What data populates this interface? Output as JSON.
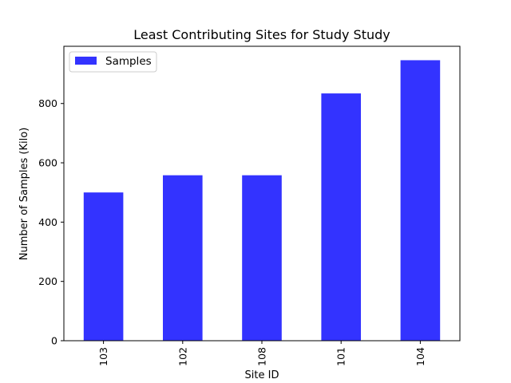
{
  "chart_data": {
    "type": "bar",
    "title": "Least Contributing Sites for Study Study",
    "xlabel": "Site ID",
    "ylabel": "Number of Samples (Kilo)",
    "categories": [
      "103",
      "102",
      "108",
      "101",
      "104"
    ],
    "series": [
      {
        "name": "Samples",
        "values": [
          500,
          558,
          558,
          834,
          946
        ],
        "color": "#3333ff"
      }
    ],
    "ylim": [
      0,
      993
    ],
    "yticks": [
      0,
      200,
      400,
      600,
      800
    ],
    "grid": false,
    "legend": "upper left"
  }
}
